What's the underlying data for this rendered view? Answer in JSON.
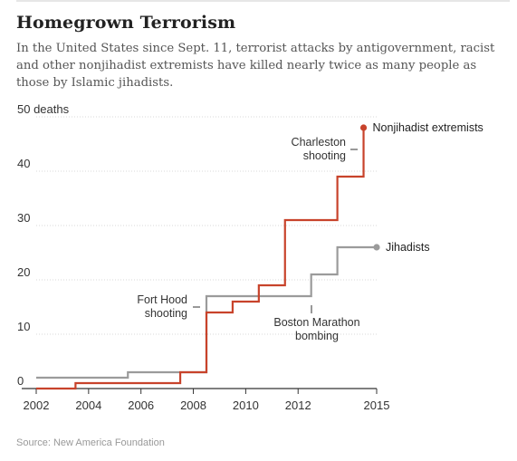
{
  "header": {
    "title": "Homegrown Terrorism",
    "subtitle": "In the United States since Sept. 11, terrorist attacks by antigovernment, racist and other nonjihadist extremists have killed nearly twice as many people as those by Islamic jihadists."
  },
  "source": "Source: New America Foundation",
  "chart_data": {
    "type": "line",
    "step": true,
    "xlim": [
      2002,
      2015
    ],
    "ylim": [
      0,
      50
    ],
    "x_ticks": [
      "2002",
      "2004",
      "2006",
      "2008",
      "2010",
      "2012",
      "2015"
    ],
    "y_ticks": [
      "0",
      "10",
      "20",
      "30",
      "40",
      "50 deaths"
    ],
    "grid": true,
    "series": [
      {
        "name": "Nonjihadist extremists",
        "color": "#c8432b",
        "points": [
          [
            2002,
            0
          ],
          [
            2003.5,
            1
          ],
          [
            2007.5,
            3
          ],
          [
            2008.5,
            14
          ],
          [
            2009.5,
            16
          ],
          [
            2010.5,
            19
          ],
          [
            2011.5,
            31
          ],
          [
            2013.5,
            39
          ],
          [
            2014.5,
            48
          ]
        ]
      },
      {
        "name": "Jihadists",
        "color": "#9b9b9b",
        "points": [
          [
            2002,
            2
          ],
          [
            2005.5,
            3
          ],
          [
            2008.5,
            17
          ],
          [
            2012.5,
            21
          ],
          [
            2013.5,
            26
          ],
          [
            2015,
            26
          ]
        ]
      }
    ],
    "annotations": [
      {
        "id": "charleston",
        "lines": [
          "Charleston",
          "shooting"
        ]
      },
      {
        "id": "fort-hood",
        "lines": [
          "Fort Hood",
          "shooting"
        ]
      },
      {
        "id": "boston",
        "lines": [
          "Boston Marathon",
          "bombing"
        ]
      }
    ]
  }
}
